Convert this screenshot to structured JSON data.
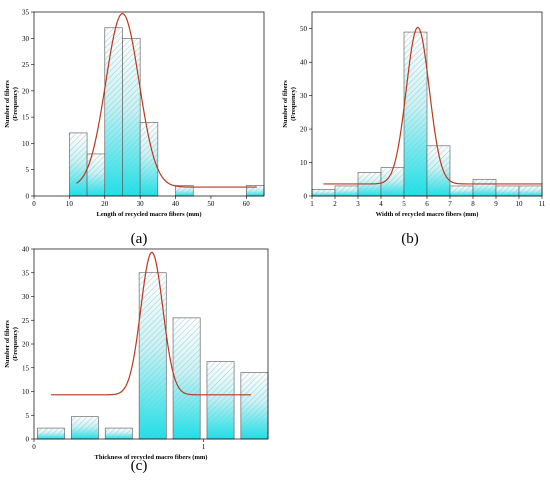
{
  "chart_data": [
    {
      "type": "bar",
      "panel": "(a)",
      "xlabel": "Length of recycled macro fibers (mm)",
      "ylabel": "Number of fibers",
      "ylabel2": "(Frequency)",
      "xlim": [
        0,
        65
      ],
      "ylim": [
        0,
        35
      ],
      "xticks": [
        0,
        10,
        20,
        30,
        40,
        50,
        60
      ],
      "yticks": [
        0,
        5,
        10,
        15,
        20,
        25,
        30,
        35
      ],
      "bins": [
        {
          "x0": 10,
          "x1": 15,
          "value": 12
        },
        {
          "x0": 15,
          "x1": 20,
          "value": 8
        },
        {
          "x0": 20,
          "x1": 25,
          "value": 32
        },
        {
          "x0": 25,
          "x1": 30,
          "value": 30
        },
        {
          "x0": 30,
          "x1": 35,
          "value": 14
        },
        {
          "x0": 40,
          "x1": 45,
          "value": 2
        },
        {
          "x0": 60,
          "x1": 65,
          "value": 2
        }
      ],
      "fit": {
        "baseline": 1.7,
        "amplitude": 33,
        "center": 25,
        "sigma": 4.7,
        "x_start": 12,
        "x_end": 63
      }
    },
    {
      "type": "bar",
      "panel": "(b)",
      "xlabel": "Width of recycled macro fibers (mm)",
      "ylabel": "Number of fibers",
      "ylabel2": "(Frequency)",
      "xlim": [
        1,
        11
      ],
      "ylim": [
        0,
        55
      ],
      "xticks": [
        1,
        2,
        3,
        4,
        5,
        6,
        7,
        8,
        9,
        10,
        11
      ],
      "yticks": [
        0,
        10,
        20,
        30,
        40,
        50
      ],
      "bins": [
        {
          "x0": 1,
          "x1": 2,
          "value": 2
        },
        {
          "x0": 2,
          "x1": 3,
          "value": 3
        },
        {
          "x0": 3,
          "x1": 4,
          "value": 7
        },
        {
          "x0": 4,
          "x1": 5,
          "value": 8.5
        },
        {
          "x0": 5,
          "x1": 6,
          "value": 49
        },
        {
          "x0": 6,
          "x1": 7,
          "value": 15
        },
        {
          "x0": 7,
          "x1": 8,
          "value": 3
        },
        {
          "x0": 8,
          "x1": 9,
          "value": 5
        },
        {
          "x0": 9,
          "x1": 10,
          "value": 3
        },
        {
          "x0": 10,
          "x1": 11,
          "value": 3
        }
      ],
      "fit": {
        "baseline": 3.6,
        "amplitude": 46.8,
        "center": 5.6,
        "sigma": 0.5,
        "x_start": 1.5,
        "x_end": 11
      }
    },
    {
      "type": "bar",
      "panel": "(c)",
      "xlabel": "Thickness of recycled macro fibers (mm)",
      "ylabel": "Number of fibers",
      "ylabel2": "(Frequency)",
      "xlim": [
        0,
        1.38
      ],
      "ylim": [
        0,
        40
      ],
      "xticks": [
        0,
        1
      ],
      "yticks": [
        0,
        5,
        10,
        15,
        20,
        25,
        30,
        35,
        40
      ],
      "bins": [
        {
          "x0": 0.02,
          "x1": 0.18,
          "value": 2.3
        },
        {
          "x0": 0.22,
          "x1": 0.38,
          "value": 4.7
        },
        {
          "x0": 0.42,
          "x1": 0.58,
          "value": 2.3
        },
        {
          "x0": 0.62,
          "x1": 0.78,
          "value": 35
        },
        {
          "x0": 0.82,
          "x1": 0.98,
          "value": 25.5
        },
        {
          "x0": 1.02,
          "x1": 1.18,
          "value": 16.3
        },
        {
          "x0": 1.22,
          "x1": 1.38,
          "value": 14
        }
      ],
      "fit": {
        "baseline": 9.3,
        "amplitude": 30,
        "center": 0.695,
        "sigma": 0.065,
        "x_start": 0.1,
        "x_end": 1.28
      }
    }
  ],
  "colors": {
    "bar_top": "#e8f6f6",
    "bar_bottom": "#13e3ea",
    "hatch": "#9fb9c4",
    "curve": "#b83a1f"
  }
}
